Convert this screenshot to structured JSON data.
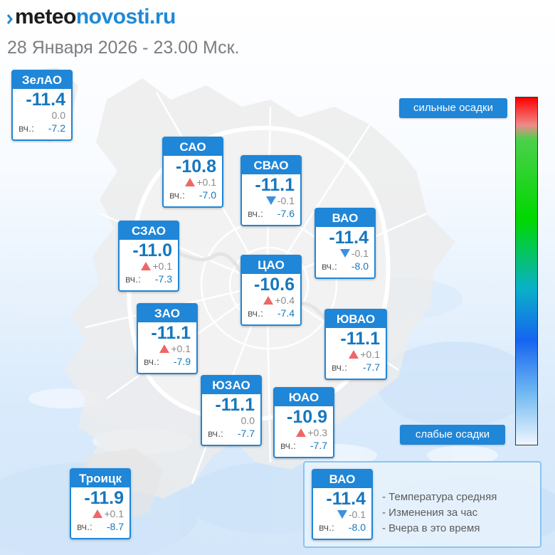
{
  "header": {
    "logo_part1": "meteo",
    "logo_part2": "novosti.ru",
    "subtitle": "28 Января 2026 - 23.00 Мск."
  },
  "colors": {
    "accent": "#1f86d8",
    "temperature": "#1677be",
    "rise": "#ee6767",
    "fall": "#3d8fe0"
  },
  "districts": [
    {
      "name": "ЗелАО",
      "temp": "-11.4",
      "change": "0.0",
      "trend": "none",
      "yesterday_label": "вч.:",
      "yesterday": "-7.2"
    },
    {
      "name": "САО",
      "temp": "-10.8",
      "change": "+0.1",
      "trend": "up",
      "yesterday_label": "вч.:",
      "yesterday": "-7.0"
    },
    {
      "name": "СВАО",
      "temp": "-11.1",
      "change": "-0.1",
      "trend": "down",
      "yesterday_label": "вч.:",
      "yesterday": "-7.6"
    },
    {
      "name": "ВАО",
      "temp": "-11.4",
      "change": "-0.1",
      "trend": "down",
      "yesterday_label": "вч.:",
      "yesterday": "-8.0"
    },
    {
      "name": "СЗАО",
      "temp": "-11.0",
      "change": "+0.1",
      "trend": "up",
      "yesterday_label": "вч.:",
      "yesterday": "-7.3"
    },
    {
      "name": "ЦАО",
      "temp": "-10.6",
      "change": "+0.4",
      "trend": "up",
      "yesterday_label": "вч.:",
      "yesterday": "-7.4"
    },
    {
      "name": "ЗАО",
      "temp": "-11.1",
      "change": "+0.1",
      "trend": "up",
      "yesterday_label": "вч.:",
      "yesterday": "-7.9"
    },
    {
      "name": "ЮВАО",
      "temp": "-11.1",
      "change": "+0.1",
      "trend": "up",
      "yesterday_label": "вч.:",
      "yesterday": "-7.7"
    },
    {
      "name": "ЮЗАО",
      "temp": "-11.1",
      "change": "0.0",
      "trend": "none",
      "yesterday_label": "вч.:",
      "yesterday": "-7.7"
    },
    {
      "name": "ЮАО",
      "temp": "-10.9",
      "change": "+0.3",
      "trend": "up",
      "yesterday_label": "вч.:",
      "yesterday": "-7.7"
    },
    {
      "name": "Троицк",
      "temp": "-11.9",
      "change": "+0.1",
      "trend": "up",
      "yesterday_label": "вч.:",
      "yesterday": "-8.7"
    }
  ],
  "precip_scale": {
    "top_label": "сильные осадки",
    "bottom_label": "слабые осадки"
  },
  "legend": {
    "sample": {
      "name": "ВАО",
      "temp": "-11.4",
      "change": "-0.1",
      "trend": "down",
      "yesterday_label": "вч.:",
      "yesterday": "-8.0"
    },
    "items": [
      "- Температура средняя",
      "- Изменения за час",
      "- Вчера в это время"
    ]
  }
}
